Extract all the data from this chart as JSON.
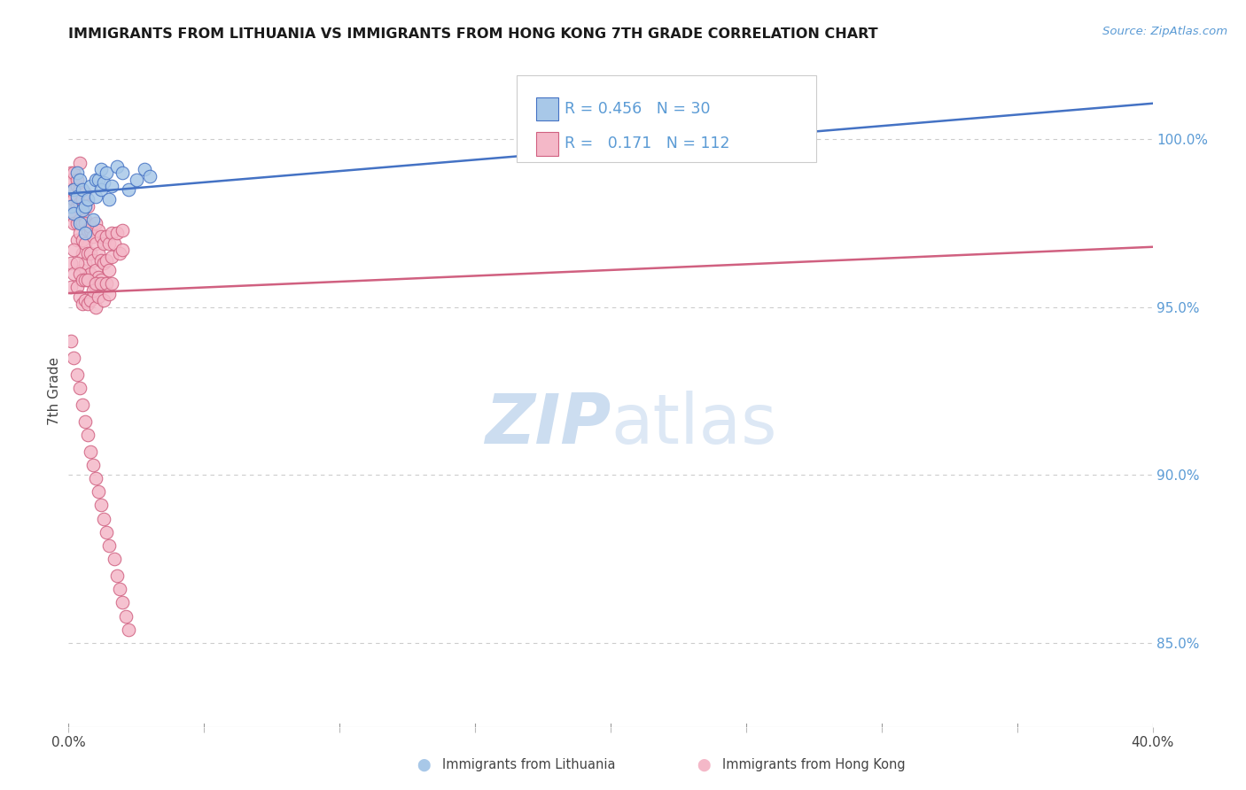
{
  "title": "IMMIGRANTS FROM LITHUANIA VS IMMIGRANTS FROM HONG KONG 7TH GRADE CORRELATION CHART",
  "source": "Source: ZipAtlas.com",
  "ylabel": "7th Grade",
  "legend_label1": "Immigrants from Lithuania",
  "legend_label2": "Immigrants from Hong Kong",
  "R_blue": 0.456,
  "N_blue": 30,
  "R_pink": 0.171,
  "N_pink": 112,
  "blue_color": "#a8c8e8",
  "blue_edge_color": "#4472c4",
  "blue_line_color": "#4472c4",
  "pink_color": "#f4b8c8",
  "pink_edge_color": "#d06080",
  "pink_line_color": "#d06080",
  "right_label_color": "#5b9bd5",
  "ylabel_right_labels": [
    "100.0%",
    "95.0%",
    "90.0%",
    "85.0%"
  ],
  "ylabel_right_values": [
    1.0,
    0.95,
    0.9,
    0.85
  ],
  "xlim": [
    0.0,
    0.4
  ],
  "ylim": [
    0.825,
    1.025
  ],
  "blue_scatter_x": [
    0.001,
    0.002,
    0.002,
    0.003,
    0.003,
    0.004,
    0.004,
    0.005,
    0.005,
    0.006,
    0.006,
    0.007,
    0.008,
    0.009,
    0.01,
    0.01,
    0.011,
    0.012,
    0.012,
    0.013,
    0.014,
    0.015,
    0.016,
    0.018,
    0.02,
    0.022,
    0.025,
    0.028,
    0.03,
    0.27
  ],
  "blue_scatter_y": [
    0.98,
    0.985,
    0.978,
    0.99,
    0.983,
    0.988,
    0.975,
    0.985,
    0.979,
    0.972,
    0.98,
    0.982,
    0.986,
    0.976,
    0.983,
    0.988,
    0.988,
    0.991,
    0.985,
    0.987,
    0.99,
    0.982,
    0.986,
    0.992,
    0.99,
    0.985,
    0.988,
    0.991,
    0.989,
    1.0
  ],
  "pink_scatter_x": [
    0.001,
    0.001,
    0.001,
    0.001,
    0.002,
    0.002,
    0.002,
    0.002,
    0.002,
    0.003,
    0.003,
    0.003,
    0.003,
    0.003,
    0.003,
    0.004,
    0.004,
    0.004,
    0.004,
    0.004,
    0.005,
    0.005,
    0.005,
    0.005,
    0.005,
    0.006,
    0.006,
    0.006,
    0.006,
    0.006,
    0.007,
    0.007,
    0.007,
    0.007,
    0.008,
    0.008,
    0.008,
    0.008,
    0.009,
    0.009,
    0.009,
    0.01,
    0.01,
    0.01,
    0.01,
    0.011,
    0.011,
    0.011,
    0.012,
    0.012,
    0.012,
    0.013,
    0.013,
    0.014,
    0.014,
    0.015,
    0.015,
    0.016,
    0.016,
    0.017,
    0.018,
    0.019,
    0.02,
    0.02,
    0.001,
    0.001,
    0.002,
    0.002,
    0.003,
    0.003,
    0.004,
    0.004,
    0.005,
    0.005,
    0.006,
    0.006,
    0.007,
    0.007,
    0.008,
    0.009,
    0.01,
    0.01,
    0.011,
    0.012,
    0.013,
    0.014,
    0.015,
    0.016,
    0.001,
    0.002,
    0.003,
    0.004,
    0.005,
    0.006,
    0.007,
    0.008,
    0.009,
    0.01,
    0.011,
    0.012,
    0.013,
    0.014,
    0.015,
    0.017,
    0.018,
    0.019,
    0.02,
    0.021,
    0.022,
    0.27
  ],
  "pink_scatter_y": [
    0.99,
    0.985,
    0.988,
    0.981,
    0.985,
    0.982,
    0.977,
    0.975,
    0.99,
    0.986,
    0.98,
    0.975,
    0.97,
    0.988,
    0.982,
    0.993,
    0.985,
    0.976,
    0.981,
    0.972,
    0.975,
    0.97,
    0.966,
    0.961,
    0.982,
    0.976,
    0.969,
    0.963,
    0.975,
    0.984,
    0.973,
    0.966,
    0.959,
    0.98,
    0.973,
    0.966,
    0.96,
    0.974,
    0.971,
    0.964,
    0.957,
    0.975,
    0.969,
    0.961,
    0.956,
    0.973,
    0.966,
    0.959,
    0.971,
    0.964,
    0.958,
    0.969,
    0.963,
    0.971,
    0.964,
    0.969,
    0.961,
    0.972,
    0.965,
    0.969,
    0.972,
    0.966,
    0.973,
    0.967,
    0.963,
    0.956,
    0.967,
    0.96,
    0.963,
    0.956,
    0.96,
    0.953,
    0.958,
    0.951,
    0.958,
    0.952,
    0.958,
    0.951,
    0.952,
    0.955,
    0.957,
    0.95,
    0.953,
    0.957,
    0.952,
    0.957,
    0.954,
    0.957,
    0.94,
    0.935,
    0.93,
    0.926,
    0.921,
    0.916,
    0.912,
    0.907,
    0.903,
    0.899,
    0.895,
    0.891,
    0.887,
    0.883,
    0.879,
    0.875,
    0.87,
    0.866,
    0.862,
    0.858,
    0.854,
    1.0
  ],
  "watermark_zip": "ZIP",
  "watermark_atlas": "atlas",
  "background_color": "#ffffff",
  "grid_color": "#cccccc"
}
